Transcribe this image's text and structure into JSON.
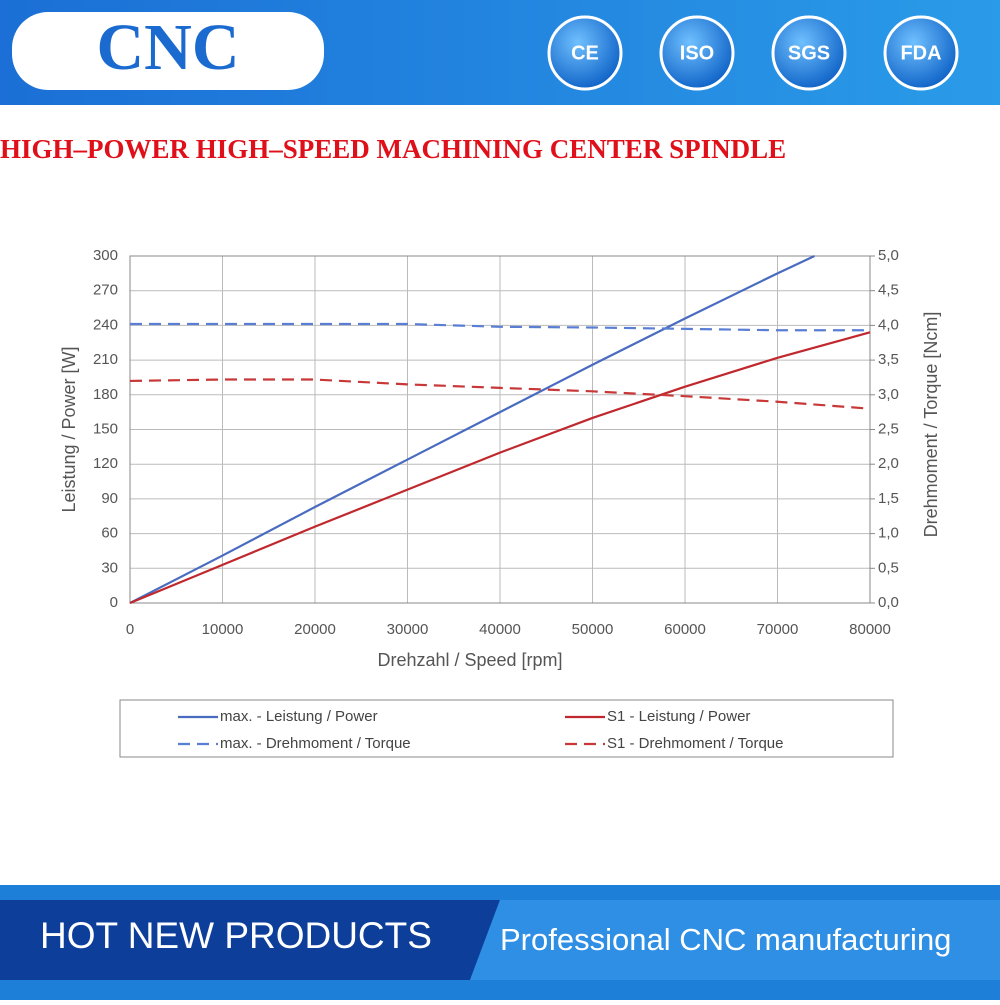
{
  "header": {
    "logo": "CNC",
    "badges": [
      "CE",
      "ISO",
      "SGS",
      "FDA"
    ]
  },
  "headline": "HIGH–POWER HIGH–SPEED MACHINING CENTER SPINDLE",
  "chart_data": {
    "type": "line",
    "xlabel": "Drehzahl / Speed [rpm]",
    "ylabel": "Leistung / Power [W]",
    "y2label": "Drehmoment / Torque [Ncm]",
    "xlim": [
      0,
      80000
    ],
    "xticks": [
      0,
      10000,
      20000,
      30000,
      40000,
      50000,
      60000,
      70000,
      80000
    ],
    "ylim": [
      0,
      300
    ],
    "yticks": [
      0,
      30,
      60,
      90,
      120,
      150,
      180,
      210,
      240,
      270,
      300
    ],
    "y2lim": [
      0,
      5
    ],
    "y2ticks": [
      {
        "value": 0,
        "label": "0,0"
      },
      {
        "value": 0.5,
        "label": "0,5"
      },
      {
        "value": 1,
        "label": "1,0"
      },
      {
        "value": 1.5,
        "label": "1,5"
      },
      {
        "value": 2,
        "label": "2,0"
      },
      {
        "value": 2.5,
        "label": "2,5"
      },
      {
        "value": 3,
        "label": "3,0"
      },
      {
        "value": 3.5,
        "label": "3,5"
      },
      {
        "value": 4,
        "label": "4,0"
      },
      {
        "value": 4.5,
        "label": "4,5"
      },
      {
        "value": 5,
        "label": "5,0"
      }
    ],
    "grid": true,
    "series": [
      {
        "name": "max. - Leistung / Power",
        "color": "#4a6cc0",
        "line_style": "solid",
        "x": [
          0,
          10000,
          20000,
          30000,
          40000,
          50000,
          60000,
          70000,
          74000
        ],
        "values": [
          0,
          41,
          83,
          124,
          165,
          206,
          246,
          285,
          300
        ]
      },
      {
        "name": "S1 - Leistung / Power",
        "color": "#c0282d",
        "line_style": "solid",
        "x": [
          0,
          10000,
          20000,
          30000,
          40000,
          50000,
          60000,
          70000,
          80000
        ],
        "values": [
          0,
          33,
          66,
          98,
          130,
          160,
          187,
          212,
          234
        ]
      },
      {
        "name": "max. - Drehmoment / Torque",
        "color": "#5a7ed4",
        "line_style": "dashed",
        "axis": "y2",
        "x": [
          0,
          10000,
          20000,
          30000,
          40000,
          50000,
          60000,
          70000,
          80000
        ],
        "values": [
          4.02,
          4.02,
          4.02,
          4.02,
          3.98,
          3.97,
          3.95,
          3.93,
          3.93
        ]
      },
      {
        "name": "S1 - Drehmoment / Torque",
        "color": "#c83838",
        "line_style": "dashed",
        "axis": "y2",
        "x": [
          0,
          10000,
          20000,
          30000,
          40000,
          50000,
          60000,
          70000,
          80000
        ],
        "values": [
          3.2,
          3.22,
          3.22,
          3.15,
          3.1,
          3.05,
          2.98,
          2.9,
          2.8
        ]
      }
    ]
  },
  "footer": {
    "left": "HOT NEW PRODUCTS",
    "right": "Professional CNC manufacturing"
  }
}
